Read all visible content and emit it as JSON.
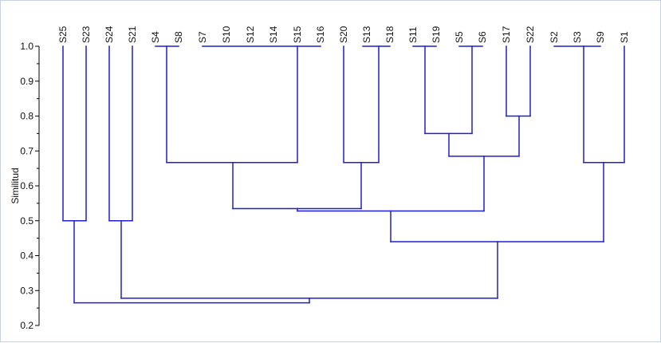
{
  "chart_data": {
    "type": "dendrogram",
    "title": "",
    "ylabel": "Similitud",
    "xlabel": "",
    "ylim": [
      0.2,
      1.0
    ],
    "yticks": [
      "0.2",
      "0.3",
      "0.4",
      "0.5",
      "0.6",
      "0.7",
      "0.8",
      "0.9",
      "1.0"
    ],
    "leaf_order": [
      "S25",
      "S23",
      "S24",
      "S21",
      "S4",
      "S8",
      "S7",
      "S10",
      "S12",
      "S14",
      "S15",
      "S16",
      "S20",
      "S13",
      "S18",
      "S11",
      "S19",
      "S5",
      "S6",
      "S17",
      "S22",
      "S2",
      "S3",
      "S9",
      "S1"
    ],
    "merges": [
      {
        "left": [
          "S4",
          "S8"
        ],
        "right": [],
        "similarity": 1.0
      },
      {
        "left": [
          "S7",
          "S10",
          "S12",
          "S14",
          "S15",
          "S16"
        ],
        "right": [],
        "similarity": 1.0
      },
      {
        "left": [
          "S13",
          "S18"
        ],
        "right": [],
        "similarity": 1.0
      },
      {
        "left": [
          "S11",
          "S19"
        ],
        "right": [],
        "similarity": 1.0
      },
      {
        "left": [
          "S5",
          "S6"
        ],
        "right": [],
        "similarity": 1.0
      },
      {
        "left": [
          "S2",
          "S3"
        ],
        "right": [],
        "similarity": 1.0
      },
      {
        "left": [
          "S17"
        ],
        "right": [
          "S22"
        ],
        "similarity": 0.8
      },
      {
        "left": [
          "S11",
          "S19"
        ],
        "right": [
          "S5",
          "S6"
        ],
        "similarity": 0.75
      },
      {
        "left": [
          "S11",
          "S19",
          "S5",
          "S6"
        ],
        "right": [
          "S17",
          "S22"
        ],
        "similarity": 0.685
      },
      {
        "left": [
          "S4",
          "S8"
        ],
        "right": [
          "S7",
          "S10",
          "S12",
          "S14",
          "S15",
          "S16"
        ],
        "similarity": 0.667
      },
      {
        "left": [
          "S20"
        ],
        "right": [
          "S13",
          "S18"
        ],
        "similarity": 0.667
      },
      {
        "left": [
          "S2",
          "S3"
        ],
        "right": [
          "S9"
        ],
        "similarity": 1.0
      },
      {
        "left": [
          "S2",
          "S3",
          "S9"
        ],
        "right": [
          "S1"
        ],
        "similarity": 0.667
      },
      {
        "left": [
          "S4",
          "S8",
          "S7",
          "S10",
          "S12",
          "S14",
          "S15",
          "S16"
        ],
        "right": [
          "S20",
          "S13",
          "S18"
        ],
        "similarity": 0.535
      },
      {
        "left": [
          "S4",
          "S8",
          "S7",
          "S10",
          "S12",
          "S14",
          "S15",
          "S16",
          "S20",
          "S13",
          "S18"
        ],
        "right": [
          "S11",
          "S19",
          "S5",
          "S6",
          "S17",
          "S22"
        ],
        "similarity": 0.528
      },
      {
        "left": [
          "S4",
          "...",
          "S22"
        ],
        "right": [
          "S2",
          "S3",
          "S9",
          "S1"
        ],
        "similarity": 0.44
      },
      {
        "left": [
          "S25"
        ],
        "right": [
          "S23"
        ],
        "similarity": 0.5
      },
      {
        "left": [
          "S24"
        ],
        "right": [
          "S21"
        ],
        "similarity": 0.5
      },
      {
        "left": [
          "S24",
          "S21"
        ],
        "right": [
          "S4",
          "...",
          "S1"
        ],
        "similarity": 0.278
      },
      {
        "left": [
          "S25",
          "S23"
        ],
        "right": [
          "S24",
          "...",
          "S1"
        ],
        "similarity": 0.265
      }
    ],
    "line_color": "#1f1fd1",
    "grid": false
  }
}
